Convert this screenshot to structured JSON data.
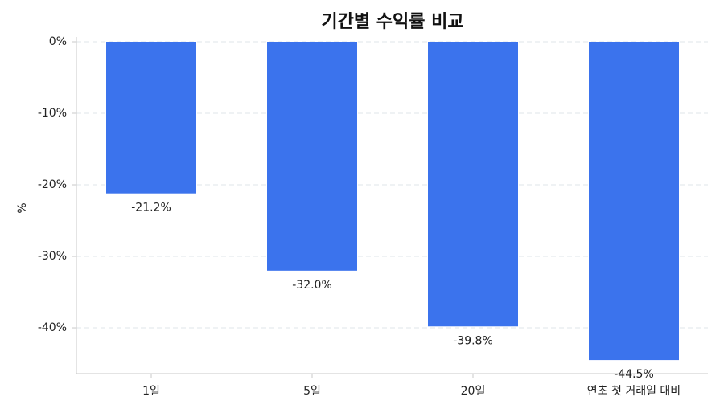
{
  "chart_data": {
    "type": "bar",
    "title": "기간별 수익률 비교",
    "y_label": "%",
    "categories": [
      "1일",
      "5일",
      "20일",
      "연초 첫 거래일 대비"
    ],
    "values": [
      -21.2,
      -32.0,
      -39.8,
      -44.5
    ],
    "value_labels": [
      "-21.2%",
      "-32.0%",
      "-39.8%",
      "-44.5%"
    ],
    "color": "#3b73ed",
    "ylim": [
      -46.4,
      0
    ],
    "yticks": [
      {
        "value": 0,
        "label": "0%"
      },
      {
        "value": -10,
        "label": "-10%"
      },
      {
        "value": -20,
        "label": "-20%"
      },
      {
        "value": -30,
        "label": "-30%"
      },
      {
        "value": -40,
        "label": "-40%"
      }
    ],
    "grid": true
  }
}
